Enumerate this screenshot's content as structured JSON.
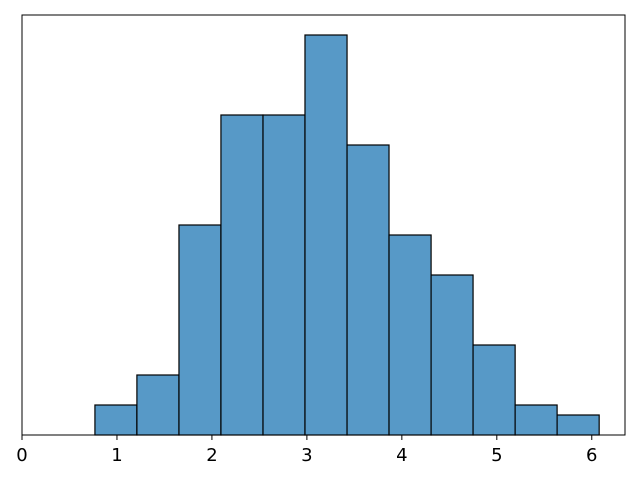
{
  "chart_data": {
    "type": "histogram",
    "bins": [
      0.768,
      1.21,
      1.653,
      2.095,
      2.538,
      2.98,
      3.423,
      3.865,
      4.308,
      4.75,
      5.193,
      5.635,
      6.078
    ],
    "values": [
      3,
      6,
      21,
      32,
      32,
      40,
      29,
      20,
      16,
      9,
      3,
      2
    ],
    "color": "#5799c7",
    "edgecolor": "#000000",
    "xlim": [
      0,
      6.35
    ],
    "xticks": [
      0,
      1,
      2,
      3,
      4,
      5,
      6
    ],
    "ylim": [
      0,
      42
    ]
  }
}
